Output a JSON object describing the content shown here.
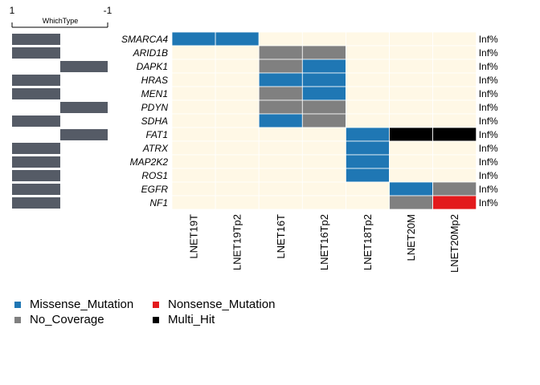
{
  "chart_data": {
    "type": "heatmap",
    "genes": [
      "SMARCA4",
      "ARID1B",
      "DAPK1",
      "HRAS",
      "MEN1",
      "PDYN",
      "SDHA",
      "FAT1",
      "ATRX",
      "MAP2K2",
      "ROS1",
      "EGFR",
      "NF1"
    ],
    "samples": [
      "LNET19T",
      "LNET19Tp2",
      "LNET16T",
      "LNET16Tp2",
      "LNET18Tp2",
      "LNET20M",
      "LNET20Mp2"
    ],
    "matrix": [
      [
        "M",
        "M",
        "",
        "",
        "",
        "",
        ""
      ],
      [
        "",
        "",
        "N",
        "N",
        "",
        "",
        ""
      ],
      [
        "",
        "",
        "N",
        "M",
        "",
        "",
        ""
      ],
      [
        "",
        "",
        "M",
        "M",
        "",
        "",
        ""
      ],
      [
        "",
        "",
        "N",
        "M",
        "",
        "",
        ""
      ],
      [
        "",
        "",
        "N",
        "N",
        "",
        "",
        ""
      ],
      [
        "",
        "",
        "M",
        "N",
        "",
        "",
        ""
      ],
      [
        "",
        "",
        "",
        "",
        "M",
        "H",
        "H"
      ],
      [
        "",
        "",
        "",
        "",
        "M",
        "",
        ""
      ],
      [
        "",
        "",
        "",
        "",
        "M",
        "",
        ""
      ],
      [
        "",
        "",
        "",
        "",
        "M",
        "",
        ""
      ],
      [
        "",
        "",
        "",
        "",
        "",
        "M",
        "N"
      ],
      [
        "",
        "",
        "",
        "",
        "",
        "N",
        "S"
      ]
    ],
    "row_percent_labels": [
      "Inf%",
      "Inf%",
      "Inf%",
      "Inf%",
      "Inf%",
      "Inf%",
      "Inf%",
      "Inf%",
      "Inf%",
      "Inf%",
      "Inf%",
      "Inf%",
      "Inf%"
    ],
    "which_type": {
      "title": "WhichType",
      "axis_min_label": "1",
      "axis_max_label": "-1",
      "values": [
        1,
        1,
        -1,
        1,
        1,
        -1,
        1,
        -1,
        1,
        1,
        1,
        1,
        1
      ]
    },
    "legend": [
      {
        "key": "M",
        "label": "Missense_Mutation",
        "color": "#1f77b4"
      },
      {
        "key": "S",
        "label": "Nonsense_Mutation",
        "color": "#e31a1c"
      },
      {
        "key": "N",
        "label": "No_Coverage",
        "color": "#808080"
      },
      {
        "key": "H",
        "label": "Multi_Hit",
        "color": "#000000"
      }
    ],
    "colors": {
      "background_cell": "#fff8e6",
      "which_type_bar": "#555b66"
    }
  }
}
